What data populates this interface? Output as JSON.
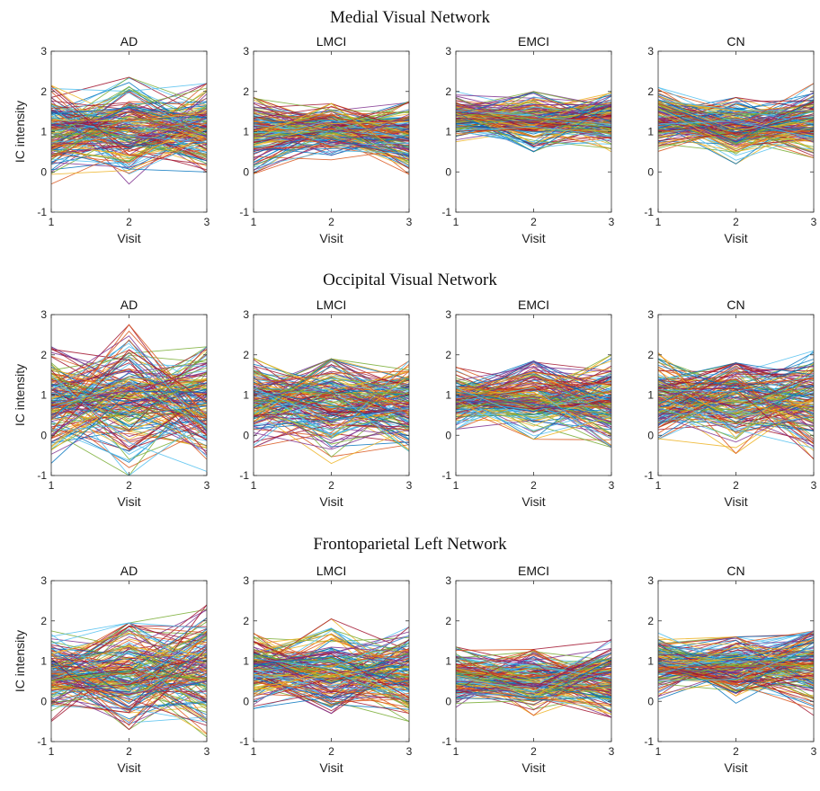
{
  "figure": {
    "row_titles": [
      "Medial Visual Network",
      "Occipital Visual Network",
      "Frontoparietal Left Network"
    ],
    "panel_titles": [
      "AD",
      "LMCI",
      "EMCI",
      "CN"
    ]
  },
  "chart_data": [
    {
      "type": "line",
      "network": "Medial Visual Network",
      "title": "AD",
      "xlabel": "Visit",
      "ylabel": "IC intensity",
      "x": [
        1,
        2,
        3
      ],
      "xticks": [
        1,
        2,
        3
      ],
      "yticks": [
        -1,
        0,
        1,
        2,
        3
      ],
      "xlim": [
        1,
        3
      ],
      "ylim": [
        -1,
        3
      ],
      "summary": {
        "n_lines": 160,
        "visit_mean": [
          1.0,
          1.05,
          1.05
        ],
        "visit_min": [
          -0.3,
          -0.3,
          0.0
        ],
        "visit_max": [
          2.15,
          2.4,
          2.2
        ]
      }
    },
    {
      "type": "line",
      "network": "Medial Visual Network",
      "title": "LMCI",
      "xlabel": "Visit",
      "ylabel": "",
      "x": [
        1,
        2,
        3
      ],
      "xticks": [
        1,
        2,
        3
      ],
      "yticks": [
        -1,
        0,
        1,
        2,
        3
      ],
      "xlim": [
        1,
        3
      ],
      "ylim": [
        -1,
        3
      ],
      "summary": {
        "n_lines": 160,
        "visit_mean": [
          1.0,
          1.05,
          0.9
        ],
        "visit_min": [
          -0.05,
          0.3,
          -0.1
        ],
        "visit_max": [
          1.85,
          1.7,
          1.75
        ]
      }
    },
    {
      "type": "line",
      "network": "Medial Visual Network",
      "title": "EMCI",
      "xlabel": "Visit",
      "ylabel": "",
      "x": [
        1,
        2,
        3
      ],
      "xticks": [
        1,
        2,
        3
      ],
      "yticks": [
        -1,
        0,
        1,
        2,
        3
      ],
      "xlim": [
        1,
        3
      ],
      "ylim": [
        -1,
        3
      ],
      "summary": {
        "n_lines": 160,
        "visit_mean": [
          1.35,
          1.3,
          1.3
        ],
        "visit_min": [
          0.75,
          0.5,
          0.5
        ],
        "visit_max": [
          2.0,
          2.0,
          2.0
        ]
      }
    },
    {
      "type": "line",
      "network": "Medial Visual Network",
      "title": "CN",
      "xlabel": "Visit",
      "ylabel": "",
      "x": [
        1,
        2,
        3
      ],
      "xticks": [
        1,
        2,
        3
      ],
      "yticks": [
        -1,
        0,
        1,
        2,
        3
      ],
      "xlim": [
        1,
        3
      ],
      "ylim": [
        -1,
        3
      ],
      "summary": {
        "n_lines": 160,
        "visit_mean": [
          1.35,
          1.1,
          1.3
        ],
        "visit_min": [
          0.5,
          0.2,
          0.35
        ],
        "visit_max": [
          2.1,
          1.85,
          2.2
        ]
      }
    },
    {
      "type": "line",
      "network": "Occipital Visual Network",
      "title": "AD",
      "xlabel": "Visit",
      "ylabel": "IC intensity",
      "x": [
        1,
        2,
        3
      ],
      "xticks": [
        1,
        2,
        3
      ],
      "yticks": [
        -1,
        0,
        1,
        2,
        3
      ],
      "xlim": [
        1,
        3
      ],
      "ylim": [
        -1,
        3
      ],
      "summary": {
        "n_lines": 160,
        "visit_mean": [
          0.8,
          0.9,
          0.8
        ],
        "visit_min": [
          -0.7,
          -1.0,
          -0.9
        ],
        "visit_max": [
          2.2,
          2.75,
          2.2
        ]
      }
    },
    {
      "type": "line",
      "network": "Occipital Visual Network",
      "title": "LMCI",
      "xlabel": "Visit",
      "ylabel": "",
      "x": [
        1,
        2,
        3
      ],
      "xticks": [
        1,
        2,
        3
      ],
      "yticks": [
        -1,
        0,
        1,
        2,
        3
      ],
      "xlim": [
        1,
        3
      ],
      "ylim": [
        -1,
        3
      ],
      "summary": {
        "n_lines": 160,
        "visit_mean": [
          0.85,
          0.8,
          0.8
        ],
        "visit_min": [
          -0.3,
          -0.7,
          -0.4
        ],
        "visit_max": [
          1.95,
          1.9,
          1.85
        ]
      }
    },
    {
      "type": "line",
      "network": "Occipital Visual Network",
      "title": "EMCI",
      "xlabel": "Visit",
      "ylabel": "",
      "x": [
        1,
        2,
        3
      ],
      "xticks": [
        1,
        2,
        3
      ],
      "yticks": [
        -1,
        0,
        1,
        2,
        3
      ],
      "xlim": [
        1,
        3
      ],
      "ylim": [
        -1,
        3
      ],
      "summary": {
        "n_lines": 160,
        "visit_mean": [
          0.9,
          0.95,
          0.8
        ],
        "visit_min": [
          0.15,
          -0.1,
          -0.3
        ],
        "visit_max": [
          1.7,
          1.85,
          2.0
        ]
      }
    },
    {
      "type": "line",
      "network": "Occipital Visual Network",
      "title": "CN",
      "xlabel": "Visit",
      "ylabel": "",
      "x": [
        1,
        2,
        3
      ],
      "xticks": [
        1,
        2,
        3
      ],
      "yticks": [
        -1,
        0,
        1,
        2,
        3
      ],
      "xlim": [
        1,
        3
      ],
      "ylim": [
        -1,
        3
      ],
      "summary": {
        "n_lines": 160,
        "visit_mean": [
          0.9,
          0.85,
          0.85
        ],
        "visit_min": [
          -0.1,
          -0.45,
          -0.6
        ],
        "visit_max": [
          2.05,
          1.8,
          2.1
        ]
      }
    },
    {
      "type": "line",
      "network": "Frontoparietal Left Network",
      "title": "AD",
      "xlabel": "Visit",
      "ylabel": "IC intensity",
      "x": [
        1,
        2,
        3
      ],
      "xticks": [
        1,
        2,
        3
      ],
      "yticks": [
        -1,
        0,
        1,
        2,
        3
      ],
      "xlim": [
        1,
        3
      ],
      "ylim": [
        -1,
        3
      ],
      "summary": {
        "n_lines": 160,
        "visit_mean": [
          0.65,
          0.75,
          0.75
        ],
        "visit_min": [
          -0.5,
          -0.7,
          -0.95
        ],
        "visit_max": [
          1.75,
          1.95,
          2.45
        ]
      }
    },
    {
      "type": "line",
      "network": "Frontoparietal Left Network",
      "title": "LMCI",
      "xlabel": "Visit",
      "ylabel": "",
      "x": [
        1,
        2,
        3
      ],
      "xticks": [
        1,
        2,
        3
      ],
      "yticks": [
        -1,
        0,
        1,
        2,
        3
      ],
      "xlim": [
        1,
        3
      ],
      "ylim": [
        -1,
        3
      ],
      "summary": {
        "n_lines": 160,
        "visit_mean": [
          0.8,
          0.75,
          0.75
        ],
        "visit_min": [
          -0.2,
          -0.3,
          -0.5
        ],
        "visit_max": [
          1.7,
          2.05,
          1.85
        ]
      }
    },
    {
      "type": "line",
      "network": "Frontoparietal Left Network",
      "title": "EMCI",
      "xlabel": "Visit",
      "ylabel": "",
      "x": [
        1,
        2,
        3
      ],
      "xticks": [
        1,
        2,
        3
      ],
      "yticks": [
        -1,
        0,
        1,
        2,
        3
      ],
      "xlim": [
        1,
        3
      ],
      "ylim": [
        -1,
        3
      ],
      "summary": {
        "n_lines": 160,
        "visit_mean": [
          0.6,
          0.55,
          0.55
        ],
        "visit_min": [
          -0.15,
          -0.35,
          -0.4
        ],
        "visit_max": [
          1.35,
          1.4,
          1.55
        ]
      }
    },
    {
      "type": "line",
      "network": "Frontoparietal Left Network",
      "title": "CN",
      "xlabel": "Visit",
      "ylabel": "",
      "x": [
        1,
        2,
        3
      ],
      "xticks": [
        1,
        2,
        3
      ],
      "yticks": [
        -1,
        0,
        1,
        2,
        3
      ],
      "xlim": [
        1,
        3
      ],
      "ylim": [
        -1,
        3
      ],
      "summary": {
        "n_lines": 160,
        "visit_mean": [
          0.9,
          0.85,
          0.85
        ],
        "visit_min": [
          0.05,
          -0.15,
          -0.35
        ],
        "visit_max": [
          1.7,
          1.6,
          1.75
        ]
      }
    }
  ]
}
